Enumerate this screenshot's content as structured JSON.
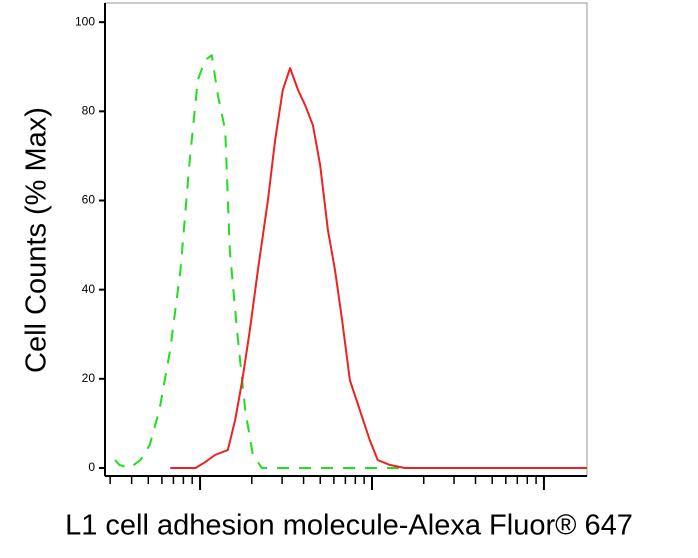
{
  "chart_data": {
    "type": "line",
    "y_label": "Cell Counts (% Max)",
    "x_label": "L1 cell adhesion molecule-Alexa Fluor® 647",
    "x_scale": "log",
    "xlim": [
      2.8,
      1780
    ],
    "xticks": [
      3,
      4,
      5,
      6,
      7,
      8,
      9,
      10,
      20,
      30,
      40,
      50,
      60,
      70,
      80,
      90,
      100,
      200,
      300,
      400,
      500,
      600,
      700,
      800,
      900,
      1000
    ],
    "ylim": [
      -1.8,
      104.3
    ],
    "yticks": [
      0,
      20,
      40,
      60,
      80,
      100
    ],
    "series": [
      {
        "color": "#22dd22",
        "dash": true,
        "x": [
          3.2,
          3.4,
          3.9,
          4.5,
          5.1,
          5.8,
          6.7,
          7.7,
          8.7,
          9.7,
          10.7,
          11.7,
          12.7,
          14,
          14.9,
          16.4,
          18.3,
          20.3,
          22.9,
          29.2,
          50,
          146,
          555,
          1780
        ],
        "values": [
          1.8,
          0.7,
          0,
          1.8,
          5.2,
          13,
          26.5,
          44.4,
          69,
          87,
          91.5,
          92.6,
          83.6,
          75.8,
          48.9,
          30.9,
          13,
          2.9,
          0,
          0,
          0,
          0,
          0,
          0
        ]
      },
      {
        "color": "#ee2222",
        "dash": false,
        "x": [
          6.7,
          9.4,
          10.7,
          12.2,
          14.5,
          16,
          17.6,
          19.5,
          21.7,
          24.8,
          27.3,
          30.3,
          33.4,
          37.1,
          40.8,
          45.3,
          49.9,
          55.4,
          60.9,
          67,
          74.4,
          84.9,
          97,
          108,
          127,
          155,
          1780
        ],
        "values": [
          0,
          0,
          1.3,
          2.9,
          4,
          10.8,
          19.7,
          31,
          44.4,
          60,
          73.5,
          84.8,
          89.7,
          84.8,
          81.4,
          76.9,
          68,
          53.4,
          44.4,
          33.2,
          19.7,
          13,
          6.3,
          1.8,
          0.7,
          0,
          0
        ]
      }
    ]
  }
}
